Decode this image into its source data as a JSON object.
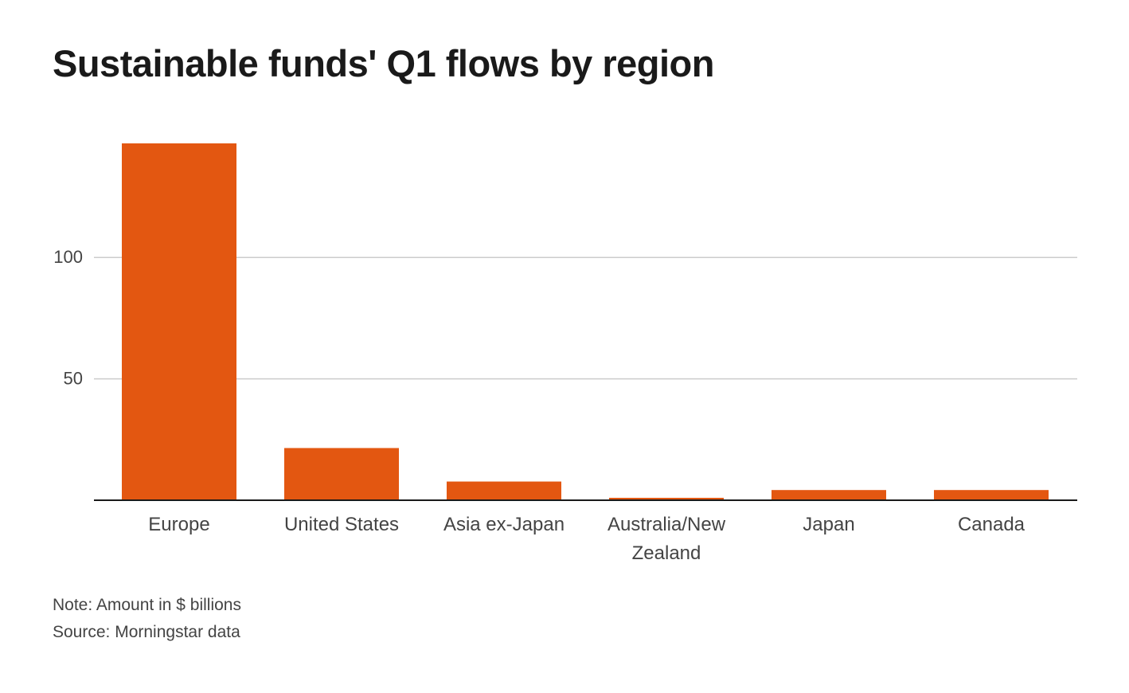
{
  "chart_data": {
    "type": "bar",
    "title": "Sustainable funds' Q1 flows by region",
    "categories": [
      "Europe",
      "United States",
      "Asia ex-Japan",
      "Australia/New Zealand",
      "Japan",
      "Canada"
    ],
    "values": [
      147,
      21.5,
      7.7,
      1,
      4.2,
      4.2
    ],
    "ylim": [
      0,
      147
    ],
    "yticks": [
      50,
      100
    ],
    "grid": true,
    "bar_color": "#e35711",
    "xlabel": "",
    "ylabel": ""
  },
  "footer": {
    "note": "Note: Amount in $ billions",
    "source": "Source: Morningstar data"
  }
}
